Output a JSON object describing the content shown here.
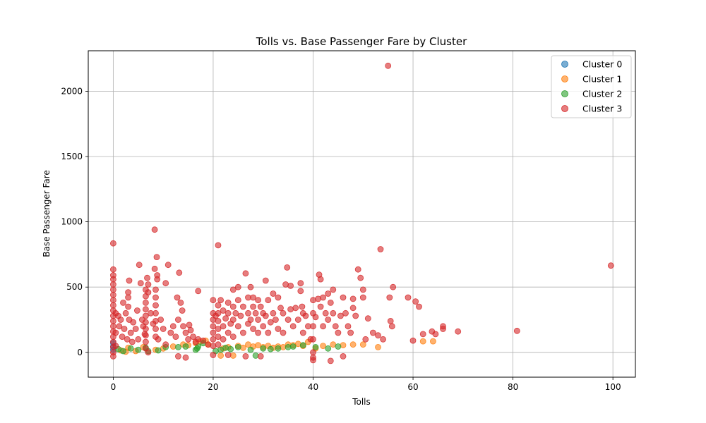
{
  "chart_data": {
    "type": "scatter",
    "title": "Tolls vs. Base Passenger Fare by Cluster",
    "xlabel": "Tolls",
    "ylabel": "Base Passenger Fare",
    "xlim": [
      -5,
      104.5
    ],
    "ylim": [
      -190,
      2310
    ],
    "xticks": [
      0,
      20,
      40,
      60,
      80,
      100
    ],
    "yticks": [
      0,
      500,
      1000,
      1500,
      2000
    ],
    "grid": true,
    "legend_position": "top-right",
    "series": [
      {
        "name": "Cluster 0",
        "color": "#1f77b4",
        "points": [
          [
            0,
            20
          ],
          [
            0,
            45
          ],
          [
            0,
            70
          ]
        ]
      },
      {
        "name": "Cluster 1",
        "color": "#ff7f0e",
        "points": [
          [
            1.5,
            15
          ],
          [
            2.5,
            5
          ],
          [
            3.0,
            35
          ],
          [
            4.5,
            10
          ],
          [
            6.0,
            40
          ],
          [
            8.5,
            20
          ],
          [
            10.0,
            30
          ],
          [
            12.0,
            45
          ],
          [
            14.0,
            60
          ],
          [
            15.0,
            55
          ],
          [
            16.5,
            70
          ],
          [
            17.5,
            85
          ],
          [
            18.5,
            90
          ],
          [
            19.0,
            60
          ],
          [
            21.5,
            -25
          ],
          [
            22.0,
            30
          ],
          [
            23.0,
            40
          ],
          [
            24.0,
            -25
          ],
          [
            25.0,
            50
          ],
          [
            26.0,
            35
          ],
          [
            27.0,
            60
          ],
          [
            28.0,
            45
          ],
          [
            29.0,
            55
          ],
          [
            30.0,
            40
          ],
          [
            31.0,
            50
          ],
          [
            32.0,
            35
          ],
          [
            33.0,
            45
          ],
          [
            34.0,
            40
          ],
          [
            35.0,
            60
          ],
          [
            36.0,
            55
          ],
          [
            37.0,
            65
          ],
          [
            38.0,
            50
          ],
          [
            39.0,
            80
          ],
          [
            40.5,
            30
          ],
          [
            42.0,
            50
          ],
          [
            44.0,
            60
          ],
          [
            46.0,
            55
          ],
          [
            48.0,
            60
          ],
          [
            50.0,
            60
          ],
          [
            53.0,
            40
          ],
          [
            62.0,
            85
          ],
          [
            64.0,
            85
          ]
        ]
      },
      {
        "name": "Cluster 2",
        "color": "#2ca02c",
        "points": [
          [
            1.0,
            25
          ],
          [
            2.0,
            10
          ],
          [
            3.5,
            30
          ],
          [
            5.0,
            20
          ],
          [
            6.5,
            35
          ],
          [
            7.0,
            10
          ],
          [
            9.0,
            15
          ],
          [
            10.5,
            40
          ],
          [
            13.0,
            40
          ],
          [
            14.5,
            45
          ],
          [
            16.5,
            20
          ],
          [
            16.8,
            30
          ],
          [
            17.0,
            45
          ],
          [
            18.0,
            70
          ],
          [
            20.5,
            10
          ],
          [
            21.5,
            20
          ],
          [
            22.5,
            35
          ],
          [
            23.5,
            25
          ],
          [
            25.0,
            40
          ],
          [
            27.5,
            20
          ],
          [
            28.5,
            -25
          ],
          [
            30.0,
            30
          ],
          [
            31.5,
            25
          ],
          [
            33.0,
            30
          ],
          [
            35.0,
            40
          ],
          [
            36.0,
            45
          ],
          [
            38.0,
            55
          ],
          [
            40.5,
            40
          ],
          [
            43.0,
            30
          ],
          [
            45.0,
            45
          ]
        ]
      },
      {
        "name": "Cluster 3",
        "color": "#d62728",
        "points": [
          [
            0,
            835
          ],
          [
            0,
            635
          ],
          [
            0,
            590
          ],
          [
            0,
            560
          ],
          [
            0,
            520
          ],
          [
            0,
            480
          ],
          [
            0,
            440
          ],
          [
            0,
            400
          ],
          [
            0,
            360
          ],
          [
            0,
            320
          ],
          [
            0,
            280
          ],
          [
            0,
            240
          ],
          [
            0,
            200
          ],
          [
            0,
            160
          ],
          [
            0,
            120
          ],
          [
            0,
            80
          ],
          [
            0,
            40
          ],
          [
            0,
            0
          ],
          [
            0,
            -30
          ],
          [
            0.5,
            300
          ],
          [
            0.5,
            150
          ],
          [
            0.5,
            50
          ],
          [
            1.0,
            280
          ],
          [
            1.2,
            200
          ],
          [
            1.5,
            250
          ],
          [
            1.8,
            120
          ],
          [
            2.0,
            380
          ],
          [
            2.2,
            180
          ],
          [
            2.5,
            300
          ],
          [
            2.8,
            100
          ],
          [
            3.0,
            460
          ],
          [
            3.0,
            420
          ],
          [
            3.0,
            350
          ],
          [
            3.2,
            250
          ],
          [
            3.2,
            550
          ],
          [
            3.5,
            150
          ],
          [
            3.8,
            80
          ],
          [
            4.0,
            230
          ],
          [
            4.5,
            180
          ],
          [
            4.8,
            320
          ],
          [
            5.0,
            100
          ],
          [
            5.2,
            670
          ],
          [
            5.5,
            530
          ],
          [
            5.8,
            250
          ],
          [
            6.0,
            200
          ],
          [
            6.3,
            140
          ],
          [
            6.5,
            480
          ],
          [
            6.5,
            430
          ],
          [
            6.5,
            380
          ],
          [
            6.5,
            330
          ],
          [
            6.5,
            280
          ],
          [
            6.5,
            230
          ],
          [
            6.5,
            180
          ],
          [
            6.5,
            130
          ],
          [
            6.5,
            80
          ],
          [
            6.5,
            30
          ],
          [
            6.8,
            570
          ],
          [
            7.0,
            520
          ],
          [
            7.0,
            460
          ],
          [
            7.0,
            0
          ],
          [
            7.5,
            300
          ],
          [
            8.0,
            220
          ],
          [
            8.3,
            640
          ],
          [
            8.3,
            940
          ],
          [
            8.5,
            480
          ],
          [
            8.5,
            420
          ],
          [
            8.5,
            360
          ],
          [
            8.5,
            300
          ],
          [
            8.5,
            240
          ],
          [
            8.5,
            180
          ],
          [
            8.5,
            120
          ],
          [
            8.7,
            730
          ],
          [
            8.8,
            590
          ],
          [
            8.8,
            560
          ],
          [
            9.0,
            100
          ],
          [
            9.5,
            250
          ],
          [
            10.0,
            180
          ],
          [
            10.5,
            530
          ],
          [
            10.5,
            60
          ],
          [
            11.0,
            670
          ],
          [
            11.5,
            150
          ],
          [
            12.0,
            200
          ],
          [
            12.5,
            120
          ],
          [
            12.8,
            420
          ],
          [
            13.0,
            250
          ],
          [
            13.2,
            610
          ],
          [
            13.5,
            380
          ],
          [
            13.8,
            320
          ],
          [
            14.0,
            200
          ],
          [
            14.5,
            150
          ],
          [
            15.0,
            100
          ],
          [
            15.2,
            210
          ],
          [
            15.5,
            170
          ],
          [
            16.0,
            120
          ],
          [
            16.5,
            80
          ],
          [
            13.0,
            -30
          ],
          [
            14.5,
            -40
          ],
          [
            17.0,
            470
          ],
          [
            17.0,
            100
          ],
          [
            18.0,
            90
          ],
          [
            19.0,
            60
          ],
          [
            20.0,
            400
          ],
          [
            20.0,
            300
          ],
          [
            20.0,
            250
          ],
          [
            20.0,
            200
          ],
          [
            20.0,
            150
          ],
          [
            20.0,
            100
          ],
          [
            20.0,
            50
          ],
          [
            20.0,
            -20
          ],
          [
            20.5,
            280
          ],
          [
            21.0,
            820
          ],
          [
            21.0,
            360
          ],
          [
            21.0,
            300
          ],
          [
            21.0,
            240
          ],
          [
            21.0,
            180
          ],
          [
            21.0,
            120
          ],
          [
            21.0,
            60
          ],
          [
            21.5,
            400
          ],
          [
            22.0,
            320
          ],
          [
            22.0,
            200
          ],
          [
            22.0,
            100
          ],
          [
            22.5,
            260
          ],
          [
            23.0,
            380
          ],
          [
            23.0,
            300
          ],
          [
            23.0,
            150
          ],
          [
            23.0,
            -20
          ],
          [
            23.5,
            220
          ],
          [
            24.0,
            480
          ],
          [
            24.0,
            350
          ],
          [
            24.0,
            250
          ],
          [
            24.0,
            120
          ],
          [
            24.5,
            300
          ],
          [
            25.0,
            500
          ],
          [
            25.0,
            400
          ],
          [
            25.0,
            200
          ],
          [
            25.5,
            280
          ],
          [
            26.0,
            350
          ],
          [
            26.0,
            150
          ],
          [
            26.5,
            605
          ],
          [
            26.5,
            -30
          ],
          [
            27.0,
            420
          ],
          [
            27.0,
            300
          ],
          [
            27.0,
            220
          ],
          [
            27.5,
            500
          ],
          [
            27.5,
            250
          ],
          [
            28.0,
            420
          ],
          [
            28.0,
            350
          ],
          [
            28.0,
            180
          ],
          [
            28.5,
            300
          ],
          [
            29.0,
            400
          ],
          [
            29.0,
            250
          ],
          [
            29.0,
            150
          ],
          [
            29.5,
            350
          ],
          [
            29.5,
            -30
          ],
          [
            30.0,
            300
          ],
          [
            30.0,
            200
          ],
          [
            30.5,
            550
          ],
          [
            30.5,
            280
          ],
          [
            31.0,
            400
          ],
          [
            31.0,
            150
          ],
          [
            31.5,
            230
          ],
          [
            32.0,
            450
          ],
          [
            32.0,
            300
          ],
          [
            32.5,
            250
          ],
          [
            33.0,
            420
          ],
          [
            33.0,
            180
          ],
          [
            33.5,
            340
          ],
          [
            34.0,
            300
          ],
          [
            34.0,
            150
          ],
          [
            34.5,
            520
          ],
          [
            34.8,
            650
          ],
          [
            35.0,
            250
          ],
          [
            35.5,
            510
          ],
          [
            35.5,
            330
          ],
          [
            36.0,
            200
          ],
          [
            36.5,
            340
          ],
          [
            37.0,
            250
          ],
          [
            37.5,
            530
          ],
          [
            37.5,
            470
          ],
          [
            37.8,
            350
          ],
          [
            38.0,
            300
          ],
          [
            38.0,
            150
          ],
          [
            38.5,
            280
          ],
          [
            39.0,
            200
          ],
          [
            39.5,
            100
          ],
          [
            40.0,
            400
          ],
          [
            40.0,
            300
          ],
          [
            40.0,
            200
          ],
          [
            40.0,
            100
          ],
          [
            40.0,
            0
          ],
          [
            40.0,
            -40
          ],
          [
            40.0,
            -60
          ],
          [
            40.5,
            270
          ],
          [
            41.0,
            410
          ],
          [
            41.2,
            595
          ],
          [
            41.5,
            560
          ],
          [
            41.5,
            350
          ],
          [
            42.0,
            420
          ],
          [
            42.0,
            200
          ],
          [
            42.5,
            300
          ],
          [
            43.0,
            450
          ],
          [
            43.0,
            250
          ],
          [
            43.5,
            380
          ],
          [
            43.5,
            -65
          ],
          [
            44.0,
            480
          ],
          [
            44.0,
            300
          ],
          [
            44.5,
            200
          ],
          [
            45.0,
            150
          ],
          [
            45.5,
            280
          ],
          [
            46.0,
            420
          ],
          [
            46.0,
            -30
          ],
          [
            46.5,
            300
          ],
          [
            47.0,
            200
          ],
          [
            47.5,
            150
          ],
          [
            48.0,
            340
          ],
          [
            48.0,
            410
          ],
          [
            48.5,
            280
          ],
          [
            49.0,
            635
          ],
          [
            49.5,
            570
          ],
          [
            50.0,
            480
          ],
          [
            50.0,
            420
          ],
          [
            50.5,
            100
          ],
          [
            51.0,
            260
          ],
          [
            52.0,
            150
          ],
          [
            53.0,
            130
          ],
          [
            53.5,
            790
          ],
          [
            54.0,
            100
          ],
          [
            55.0,
            2195
          ],
          [
            55.3,
            420
          ],
          [
            55.5,
            240
          ],
          [
            55.8,
            200
          ],
          [
            56.0,
            500
          ],
          [
            59.0,
            420
          ],
          [
            60.0,
            90
          ],
          [
            60.5,
            390
          ],
          [
            61.2,
            350
          ],
          [
            62.0,
            140
          ],
          [
            63.8,
            160
          ],
          [
            64.5,
            140
          ],
          [
            66.0,
            200
          ],
          [
            66.0,
            180
          ],
          [
            69.0,
            160
          ],
          [
            80.8,
            165
          ],
          [
            99.6,
            665
          ]
        ]
      }
    ]
  }
}
